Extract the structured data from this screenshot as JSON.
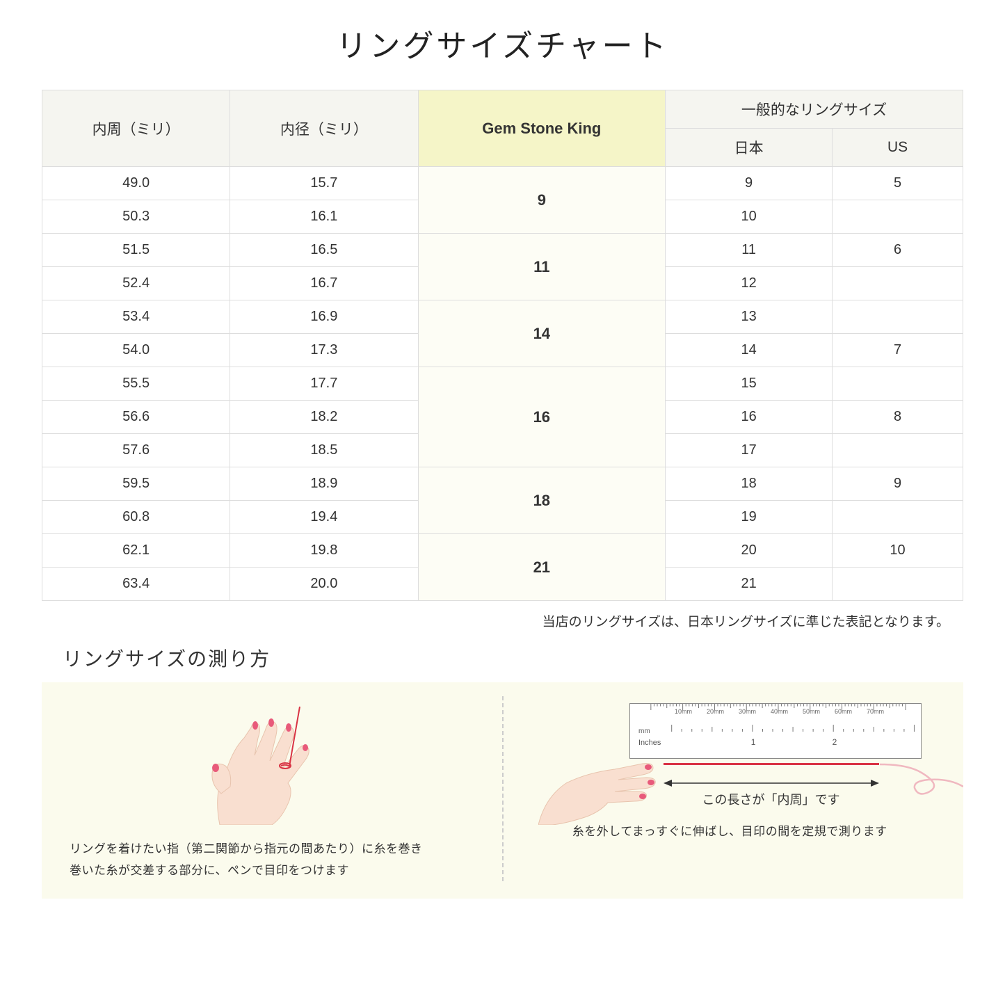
{
  "title": "リングサイズチャート",
  "headers": {
    "circumference": "内周（ミリ）",
    "diameter": "内径（ミリ）",
    "gsk": "Gem Stone King",
    "common": "一般的なリングサイズ",
    "jp": "日本",
    "us": "US"
  },
  "rows": [
    {
      "circ": "49.0",
      "dia": "15.7",
      "jp": "9",
      "us": "5"
    },
    {
      "circ": "50.3",
      "dia": "16.1",
      "jp": "10",
      "us": ""
    },
    {
      "circ": "51.5",
      "dia": "16.5",
      "jp": "11",
      "us": "6"
    },
    {
      "circ": "52.4",
      "dia": "16.7",
      "jp": "12",
      "us": ""
    },
    {
      "circ": "53.4",
      "dia": "16.9",
      "jp": "13",
      "us": ""
    },
    {
      "circ": "54.0",
      "dia": "17.3",
      "jp": "14",
      "us": "7"
    },
    {
      "circ": "55.5",
      "dia": "17.7",
      "jp": "15",
      "us": ""
    },
    {
      "circ": "56.6",
      "dia": "18.2",
      "jp": "16",
      "us": "8"
    },
    {
      "circ": "57.6",
      "dia": "18.5",
      "jp": "17",
      "us": ""
    },
    {
      "circ": "59.5",
      "dia": "18.9",
      "jp": "18",
      "us": "9"
    },
    {
      "circ": "60.8",
      "dia": "19.4",
      "jp": "19",
      "us": ""
    },
    {
      "circ": "62.1",
      "dia": "19.8",
      "jp": "20",
      "us": "10"
    },
    {
      "circ": "63.4",
      "dia": "20.0",
      "jp": "21",
      "us": ""
    }
  ],
  "gsk_groups": [
    {
      "size": "9",
      "span": 2
    },
    {
      "size": "11",
      "span": 2
    },
    {
      "size": "14",
      "span": 2
    },
    {
      "size": "16",
      "span": 3
    },
    {
      "size": "18",
      "span": 2
    },
    {
      "size": "21",
      "span": 2
    }
  ],
  "note": "当店のリングサイズは、日本リングサイズに準じた表記となります。",
  "howto": {
    "title": "リングサイズの測り方",
    "left_text1": "リングを着けたい指（第二関節から指元の間あたり）に糸を巻き",
    "left_text2": "巻いた糸が交差する部分に、ペンで目印をつけます",
    "right_arrow_label": "この長さが「内周」です",
    "right_text": "糸を外してまっすぐに伸ばし、目印の間を定規で測ります",
    "ruler_mm_labels": [
      "10mm",
      "20mm",
      "30mm",
      "40mm",
      "50mm",
      "60mm",
      "70mm"
    ],
    "ruler_mm": "mm",
    "ruler_inches": "Inches",
    "ruler_inch_nums": [
      "1",
      "2"
    ]
  },
  "colors": {
    "header_bg": "#f5f5f0",
    "gsk_bg": "#f5f5c8",
    "gsk_cell_bg": "#fdfdf5",
    "border": "#dddddd",
    "howto_bg": "#fbfbed",
    "skin": "#f9dfd0",
    "skin_dark": "#f0c9b5",
    "nail": "#e85a7a",
    "thread": "#d93344"
  }
}
